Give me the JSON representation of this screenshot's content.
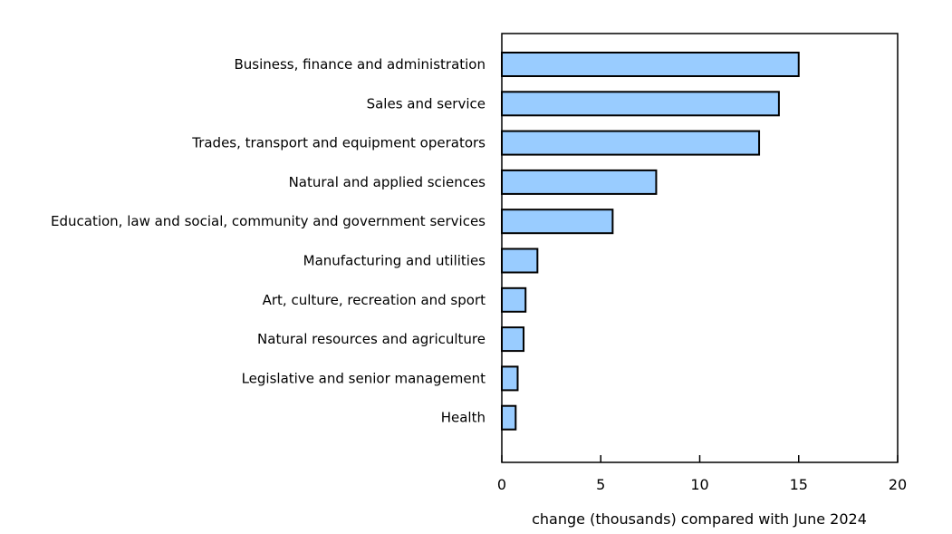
{
  "chart_data": {
    "type": "bar",
    "orientation": "horizontal",
    "categories": [
      "Business, finance and administration",
      "Sales and service",
      "Trades, transport and equipment operators",
      "Natural and applied sciences",
      "Education, law and social, community and government services",
      "Manufacturing and utilities",
      "Art, culture, recreation and sport",
      "Natural resources and agriculture",
      "Legislative and senior management",
      "Health"
    ],
    "values": [
      15.0,
      14.0,
      13.0,
      7.8,
      5.6,
      1.8,
      1.2,
      1.1,
      0.8,
      0.7
    ],
    "title": "",
    "xlabel": "change (thousands) compared with June 2024",
    "ylabel": "",
    "xlim": [
      0,
      20
    ],
    "xticks": [
      "0",
      "5",
      "10",
      "15",
      "20"
    ],
    "grid": false,
    "bar_color": "#99ccff",
    "bar_outline": "#000000"
  }
}
